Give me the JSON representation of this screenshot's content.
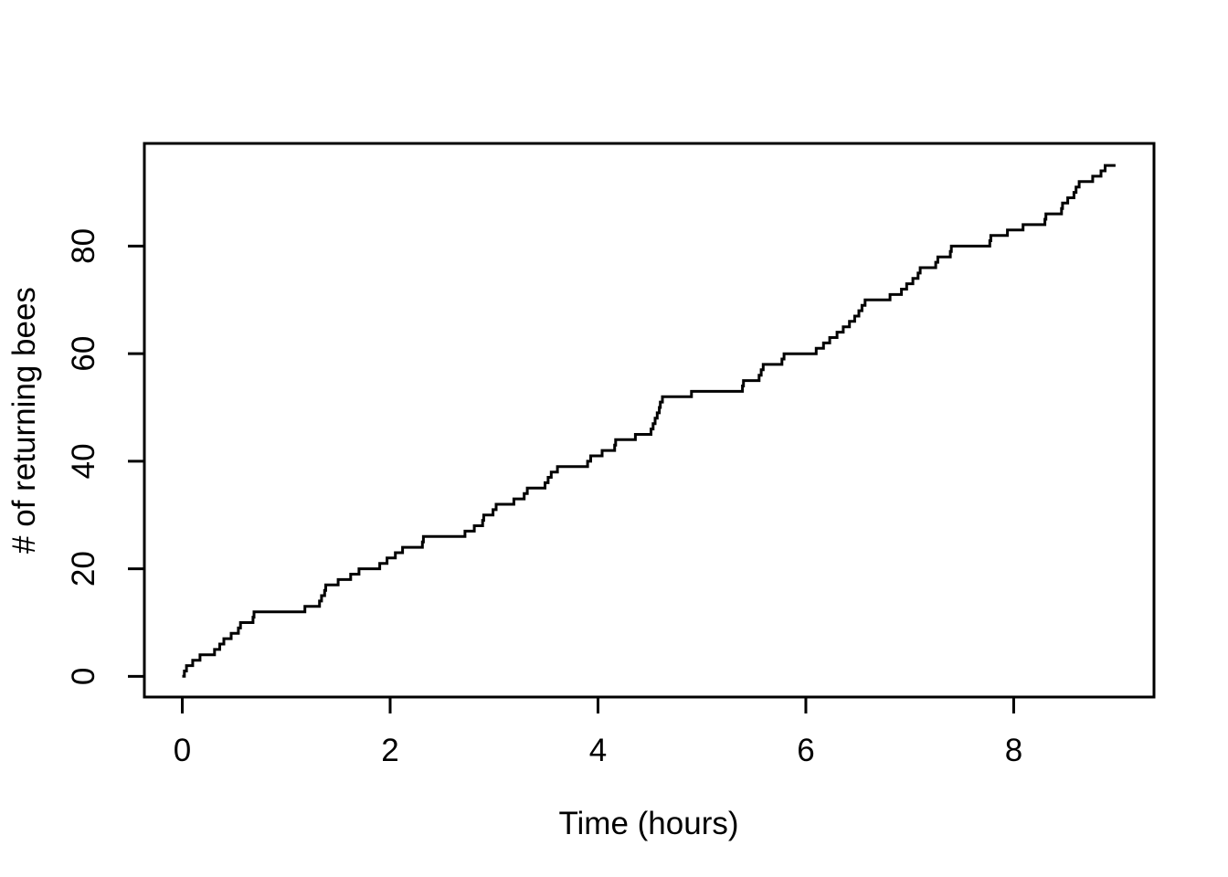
{
  "figure": {
    "background_color": "#ffffff",
    "line_color": "#000000",
    "axis_color": "#000000"
  },
  "chart_data": {
    "type": "line",
    "subtype": "step-function",
    "title": "",
    "xlabel": "Time (hours)",
    "ylabel": "# of returning bees",
    "xlim": [
      -0.365,
      9.35
    ],
    "ylim": [
      -3.85,
      99.1
    ],
    "x_ticks": [
      0,
      2,
      4,
      6,
      8
    ],
    "y_ticks": [
      0,
      20,
      40,
      60,
      80
    ],
    "grid": false,
    "legend": "none",
    "start_point": {
      "t": 0,
      "count": 0
    },
    "end_time": 8.98,
    "final_count": 95,
    "event_times": [
      0.02,
      0.04,
      0.1,
      0.17,
      0.31,
      0.36,
      0.4,
      0.47,
      0.54,
      0.56,
      0.68,
      0.69,
      1.18,
      1.32,
      1.34,
      1.37,
      1.38,
      1.5,
      1.62,
      1.7,
      1.9,
      1.97,
      2.05,
      2.12,
      2.31,
      2.32,
      2.72,
      2.81,
      2.89,
      2.9,
      2.99,
      3.02,
      3.19,
      3.29,
      3.32,
      3.49,
      3.52,
      3.55,
      3.61,
      3.9,
      3.93,
      4.04,
      4.16,
      4.17,
      4.36,
      4.51,
      4.53,
      4.55,
      4.57,
      4.59,
      4.6,
      4.62,
      4.9,
      5.39,
      5.4,
      5.55,
      5.57,
      5.59,
      5.77,
      5.79,
      6.1,
      6.17,
      6.23,
      6.3,
      6.36,
      6.42,
      6.47,
      6.51,
      6.54,
      6.57,
      6.81,
      6.92,
      6.97,
      7.03,
      7.08,
      7.1,
      7.25,
      7.27,
      7.39,
      7.4,
      7.77,
      7.78,
      7.94,
      8.09,
      8.3,
      8.31,
      8.46,
      8.47,
      8.52,
      8.58,
      8.6,
      8.63,
      8.76,
      8.84,
      8.88
    ]
  }
}
